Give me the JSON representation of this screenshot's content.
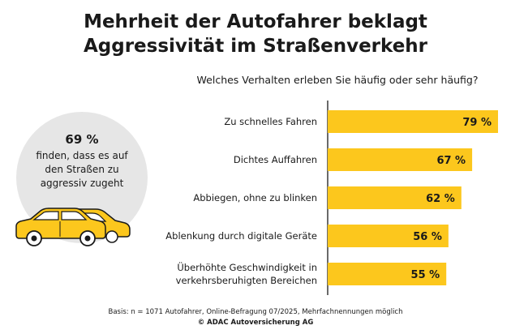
{
  "title_line1": "Mehrheit der Autofahrer beklagt",
  "title_line2": "Aggressivität im Straßenverkehr",
  "callout": {
    "pct": "69 %",
    "text": "finden, dass es auf den Straßen zu aggressiv zugeht"
  },
  "footer": {
    "basis": "Basis: n = 1071 Autofahrer, Online-Befragung 07/2025, Mehrfachnennungen möglich",
    "copyright": "© ADAC Autoversicherung AG"
  },
  "colors": {
    "bar": "#fcc71d",
    "axis": "#1a1a1a",
    "bubble": "#e6e6e6",
    "car": "#fcc71d"
  },
  "chart_data": {
    "type": "bar",
    "orientation": "horizontal",
    "title": "Welches Verhalten erleben Sie häufig oder sehr häufig?",
    "categories": [
      [
        "Zu schnelles Fahren"
      ],
      [
        "Dichtes Auffahren"
      ],
      [
        "Abbiegen, ohne zu blinken"
      ],
      [
        "Ablenkung durch digitale Geräte"
      ],
      [
        "Überhöhte Geschwindigkeit in",
        "verkehrsberuhigten Bereichen"
      ]
    ],
    "values": [
      79,
      67,
      62,
      56,
      55
    ],
    "value_labels": [
      "79 %",
      "67 %",
      "62 %",
      "56 %",
      "55 %"
    ],
    "xlim": [
      0,
      100
    ],
    "grid": false
  }
}
